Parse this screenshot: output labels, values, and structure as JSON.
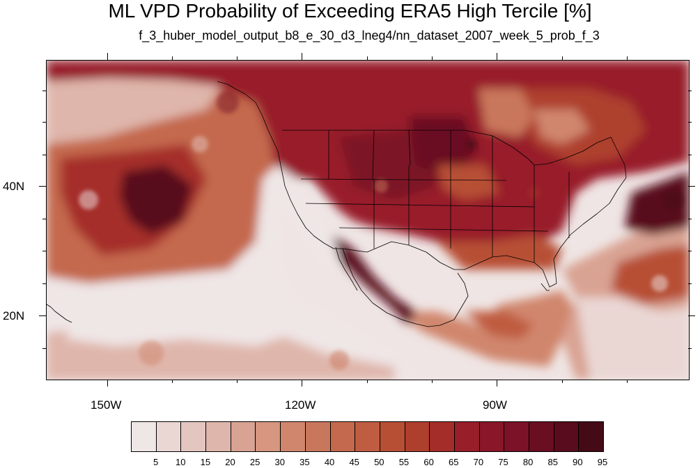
{
  "title": "ML VPD Probability of Exceeding ERA5 High Tercile [%]",
  "subtitle": "f_3_huber_model_output_b8_e_30_d3_lneg4/nn_dataset_2007_week_5_prob_f_3",
  "map": {
    "lat_labels": [
      "40N",
      "20N"
    ],
    "lon_labels": [
      "150W",
      "120W",
      "90W"
    ],
    "projection": "cylindrical equidistant",
    "lon_range": [
      -160,
      -61
    ],
    "lat_range": [
      10,
      59
    ],
    "land_boundaries": "continental US states, Canada coast, Mexico, Hawaii"
  },
  "colorbar": {
    "labels": [
      "5",
      "10",
      "15",
      "20",
      "25",
      "30",
      "35",
      "40",
      "45",
      "50",
      "55",
      "60",
      "65",
      "70",
      "75",
      "80",
      "85",
      "90",
      "95"
    ],
    "colors": [
      "#efe6e6",
      "#ead7d4",
      "#e4c6c0",
      "#dfb6ab",
      "#d9a393",
      "#d6967f",
      "#d0866d",
      "#c9775c",
      "#c4694d",
      "#bf5c41",
      "#b74f34",
      "#ae3f2d",
      "#a52d29",
      "#981e29",
      "#8a1629",
      "#7b1227",
      "#6a0e22",
      "#590c1d",
      "#440a15"
    ]
  }
}
